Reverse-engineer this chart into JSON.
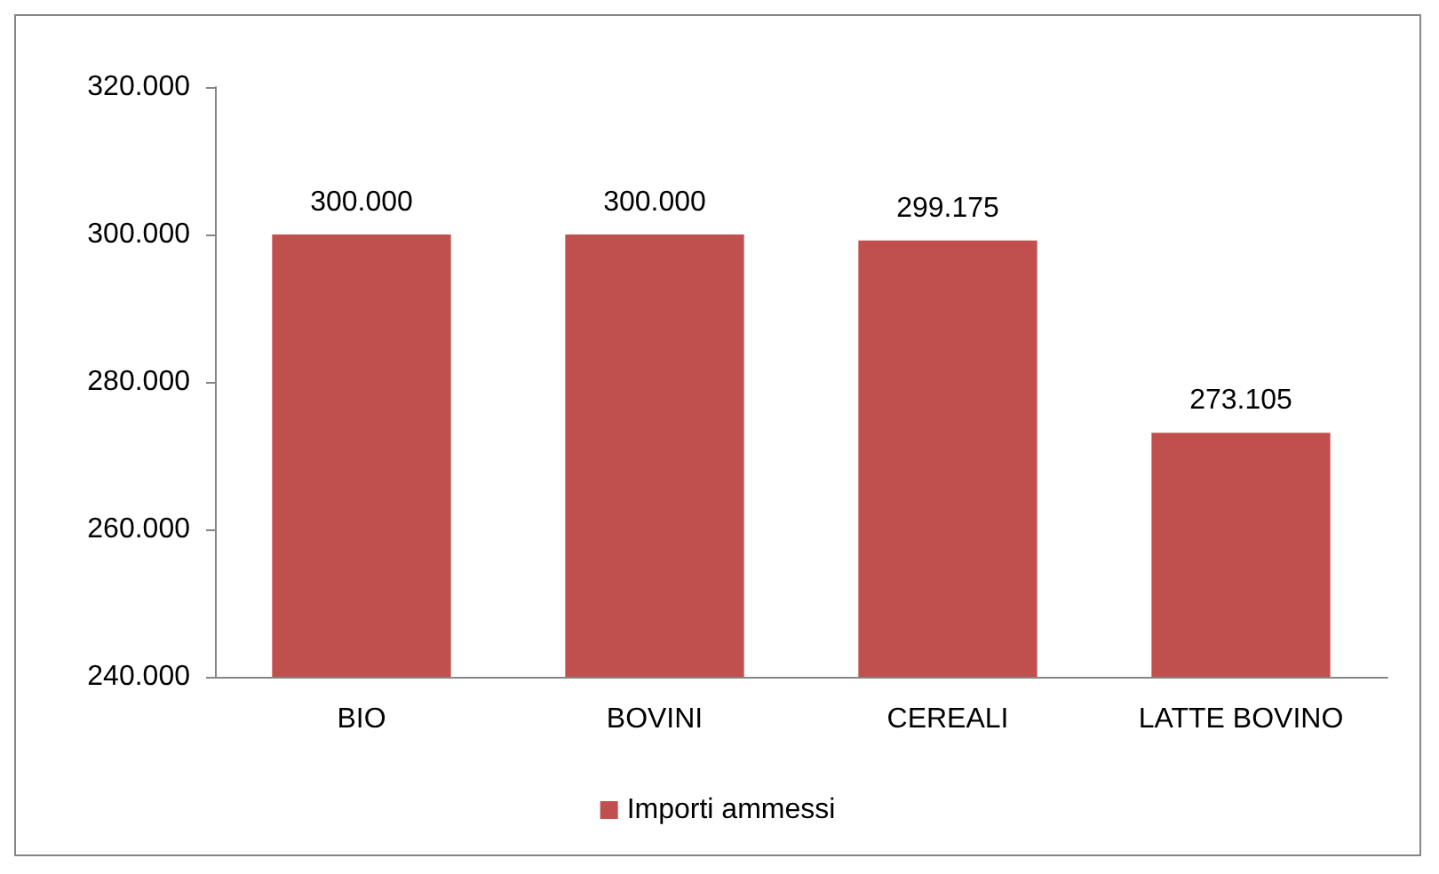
{
  "chart_data": {
    "type": "bar",
    "categories": [
      "BIO",
      "BOVINI",
      "CEREALI",
      "LATTE BOVINO"
    ],
    "series": [
      {
        "name": "Importi ammessi",
        "color": "#c0504d",
        "values": [
          300000,
          300000,
          299175,
          273105
        ],
        "value_labels": [
          "300.000",
          "300.000",
          "299.175",
          "273.105"
        ]
      }
    ],
    "ylim": [
      240000,
      320000
    ],
    "yticks": [
      {
        "value": 240000,
        "label": "240.000"
      },
      {
        "value": 260000,
        "label": "260.000"
      },
      {
        "value": 280000,
        "label": "280.000"
      },
      {
        "value": 300000,
        "label": "300.000"
      },
      {
        "value": 320000,
        "label": "320.000"
      }
    ],
    "grid": false,
    "legend": "bottom"
  }
}
